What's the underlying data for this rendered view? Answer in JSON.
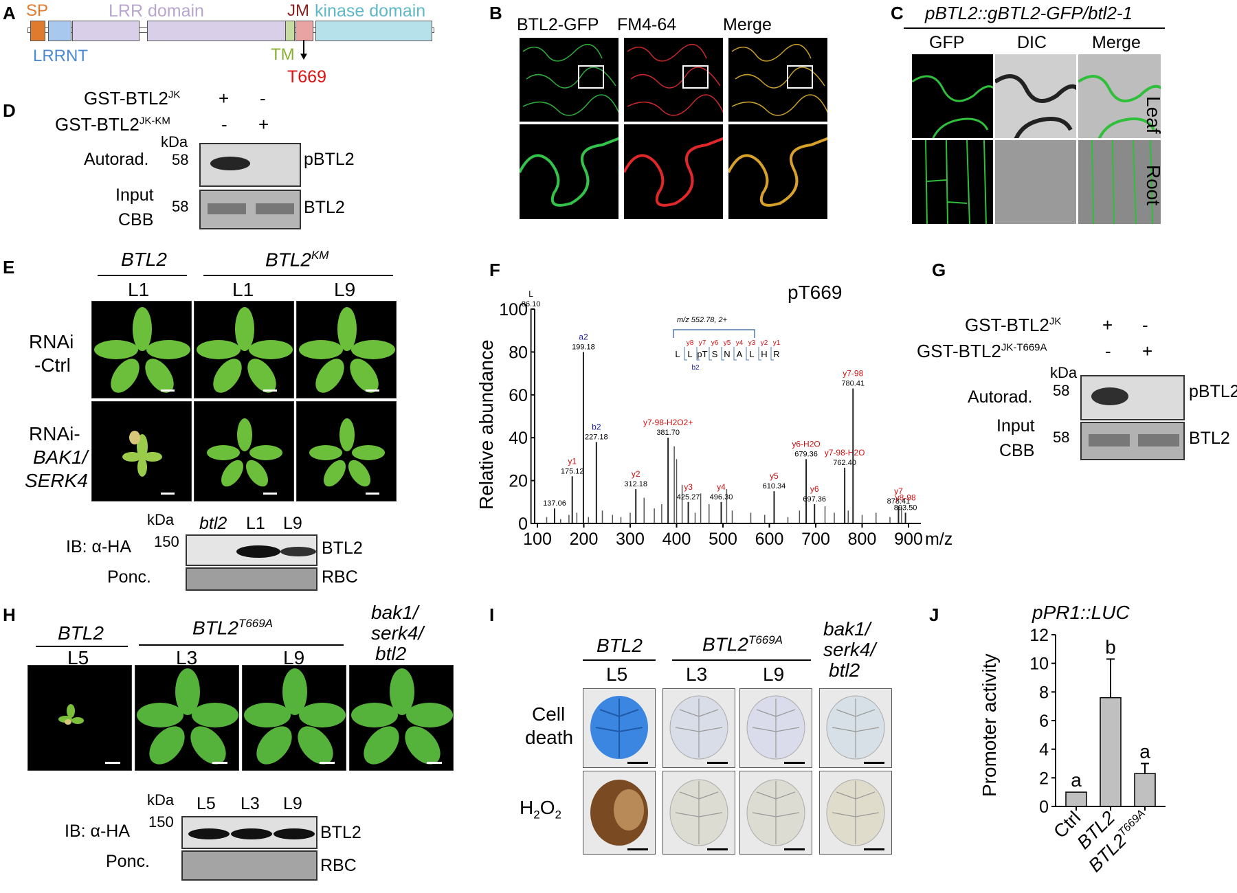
{
  "panels": {
    "A": "A",
    "B": "B",
    "C": "C",
    "D": "D",
    "E": "E",
    "F": "F",
    "G": "G",
    "H": "H",
    "I": "I",
    "J": "J"
  },
  "panelA": {
    "sp": "SP",
    "lrrnt": "LRRNT",
    "lrr": "LRR domain",
    "jm": "JM",
    "kinase": "kinase domain",
    "tm": "TM",
    "site": "T669",
    "colors": {
      "sp": "#e07a2e",
      "lrrnt": "#4a8bd0",
      "lrr": "#b9a6cf",
      "jm": "#8b2222",
      "kinase": "#5fb8c8",
      "tm": "#8ab034",
      "site": "#e01010"
    }
  },
  "panelB": {
    "c1": "BTL2-GFP",
    "c2": "FM4-64",
    "c3": "Merge"
  },
  "panelC": {
    "title": "pBTL2::gBTL2-GFP/btl2-1",
    "c1": "GFP",
    "c2": "DIC",
    "c3": "Merge",
    "r1": "Leaf",
    "r2": "Root"
  },
  "panelD": {
    "row1": "GST-BTL2",
    "row1sup": "JK",
    "row1a": "+",
    "row1b": "-",
    "row2": "GST-BTL2",
    "row2sup": "JK-KM",
    "row2a": "-",
    "row2b": "+",
    "kda": "kDa",
    "autorad": "Autorad.",
    "m1": "58",
    "p1": "pBTL2",
    "input": "Input",
    "cbb": "CBB",
    "m2": "58",
    "p2": "BTL2"
  },
  "panelE": {
    "g1": "BTL2",
    "g2": "BTL2",
    "g2sup": "KM",
    "l1": "L1",
    "l2": "L1",
    "l3": "L9",
    "r1a": "RNAi",
    "r1b": "-Ctrl",
    "r2a": "RNAi-",
    "r2b": "BAK1/",
    "r2c": "SERK4",
    "kda": "kDa",
    "lane1": "btl2",
    "lane2": "L1",
    "lane3": "L9",
    "ib": "IB: α-HA",
    "m": "150",
    "p1": "BTL2",
    "ponc": "Ponc.",
    "p2": "RBC"
  },
  "panelF": {
    "title": "pT669",
    "ylabel": "Relative abundance",
    "xunit": "m/z",
    "mz": "m/z 552.78, 2+",
    "seq": [
      "L",
      "L",
      "pT",
      "S",
      "N",
      "A",
      "L",
      "H",
      "R"
    ],
    "yions": [
      "y8",
      "y7",
      "y6",
      "y5",
      "y4",
      "y3",
      "y2",
      "y1"
    ],
    "bion": "b2",
    "peaks": [
      {
        "mz": 86.1,
        "rel": 100,
        "lab": "86.10",
        "ion": "L",
        "c": "#000"
      },
      {
        "mz": 137.06,
        "rel": 7,
        "lab": "137.06",
        "ion": "",
        "c": "#000"
      },
      {
        "mz": 175.12,
        "rel": 22,
        "lab": "175.12",
        "ion": "y1",
        "c": "#d01010"
      },
      {
        "mz": 199.18,
        "rel": 80,
        "lab": "199.18",
        "ion": "a2",
        "c": "#1a1aa0"
      },
      {
        "mz": 227.18,
        "rel": 38,
        "lab": "227.18",
        "ion": "b2",
        "c": "#1a1aa0"
      },
      {
        "mz": 312.18,
        "rel": 16,
        "lab": "312.18",
        "ion": "y2",
        "c": "#d01010"
      },
      {
        "mz": 381.7,
        "rel": 40,
        "lab": "381.70",
        "ion": "y7-98-H2O2+",
        "c": "#d01010"
      },
      {
        "mz": 425.27,
        "rel": 10,
        "lab": "425.27",
        "ion": "y3",
        "c": "#d01010"
      },
      {
        "mz": 496.3,
        "rel": 10,
        "lab": "496.30",
        "ion": "y4",
        "c": "#d01010"
      },
      {
        "mz": 610.34,
        "rel": 15,
        "lab": "610.34",
        "ion": "y5",
        "c": "#d01010"
      },
      {
        "mz": 679.36,
        "rel": 30,
        "lab": "679.36",
        "ion": "y6-H2O",
        "c": "#d01010"
      },
      {
        "mz": 697.36,
        "rel": 9,
        "lab": "697.36",
        "ion": "y6",
        "c": "#d01010"
      },
      {
        "mz": 762.4,
        "rel": 26,
        "lab": "762.40",
        "ion": "y7-98-H2O",
        "c": "#d01010"
      },
      {
        "mz": 780.41,
        "rel": 63,
        "lab": "780.41",
        "ion": "y7-98",
        "c": "#d01010"
      },
      {
        "mz": 878.41,
        "rel": 8,
        "lab": "878.41",
        "ion": "y7",
        "c": "#d01010"
      },
      {
        "mz": 893.5,
        "rel": 5,
        "lab": "893.50",
        "ion": "y8-98",
        "c": "#d01010"
      }
    ],
    "xticks": [
      100,
      200,
      300,
      400,
      500,
      600,
      700,
      800,
      900
    ],
    "yticks": [
      0,
      20,
      40,
      60,
      80,
      100
    ]
  },
  "panelG": {
    "row1": "GST-BTL2",
    "row1sup": "JK",
    "row1a": "+",
    "row1b": "-",
    "row2": "GST-BTL2",
    "row2sup": "JK-T669A",
    "row2a": "-",
    "row2b": "+",
    "kda": "kDa",
    "autorad": "Autorad.",
    "m1": "58",
    "p1": "pBTL2",
    "input": "Input",
    "cbb": "CBB",
    "m2": "58",
    "p2": "BTL2"
  },
  "panelH": {
    "g1": "BTL2",
    "g2": "BTL2",
    "g2sup": "T669A",
    "g3a": "bak1/",
    "g3b": "serk4/",
    "g3c": "btl2",
    "l1": "L5",
    "l2": "L3",
    "l3": "L9",
    "kda": "kDa",
    "lane1": "L5",
    "lane2": "L3",
    "lane3": "L9",
    "ib": "IB: α-HA",
    "m": "150",
    "p1": "BTL2",
    "ponc": "Ponc.",
    "p2": "RBC"
  },
  "panelI": {
    "g1": "BTL2",
    "g2": "BTL2",
    "g2sup": "T669A",
    "g3a": "bak1/",
    "g3b": "serk4/",
    "g3c": "btl2",
    "l1": "L5",
    "l2": "L3",
    "l3": "L9",
    "r1a": "Cell",
    "r1b": "death",
    "r2": "H",
    "r2sub": "2",
    "r2b": "O",
    "r2sub2": "2"
  },
  "chart_data": {
    "type": "bar",
    "title": "pPR1::LUC",
    "ylabel": "Promoter activity",
    "categories": [
      "Ctrl",
      "BTL2",
      "BTL2T669A"
    ],
    "cat_labels": {
      "c1": "Ctrl",
      "c2": "BTL2",
      "c3": "BTL2",
      "c3sup": "T669A"
    },
    "values": [
      1.0,
      7.6,
      2.3
    ],
    "errors": [
      0,
      2.7,
      0.7
    ],
    "letters": [
      "a",
      "b",
      "a"
    ],
    "ylim": [
      0,
      12
    ],
    "yticks": [
      0,
      2,
      4,
      6,
      8,
      10,
      12
    ]
  }
}
